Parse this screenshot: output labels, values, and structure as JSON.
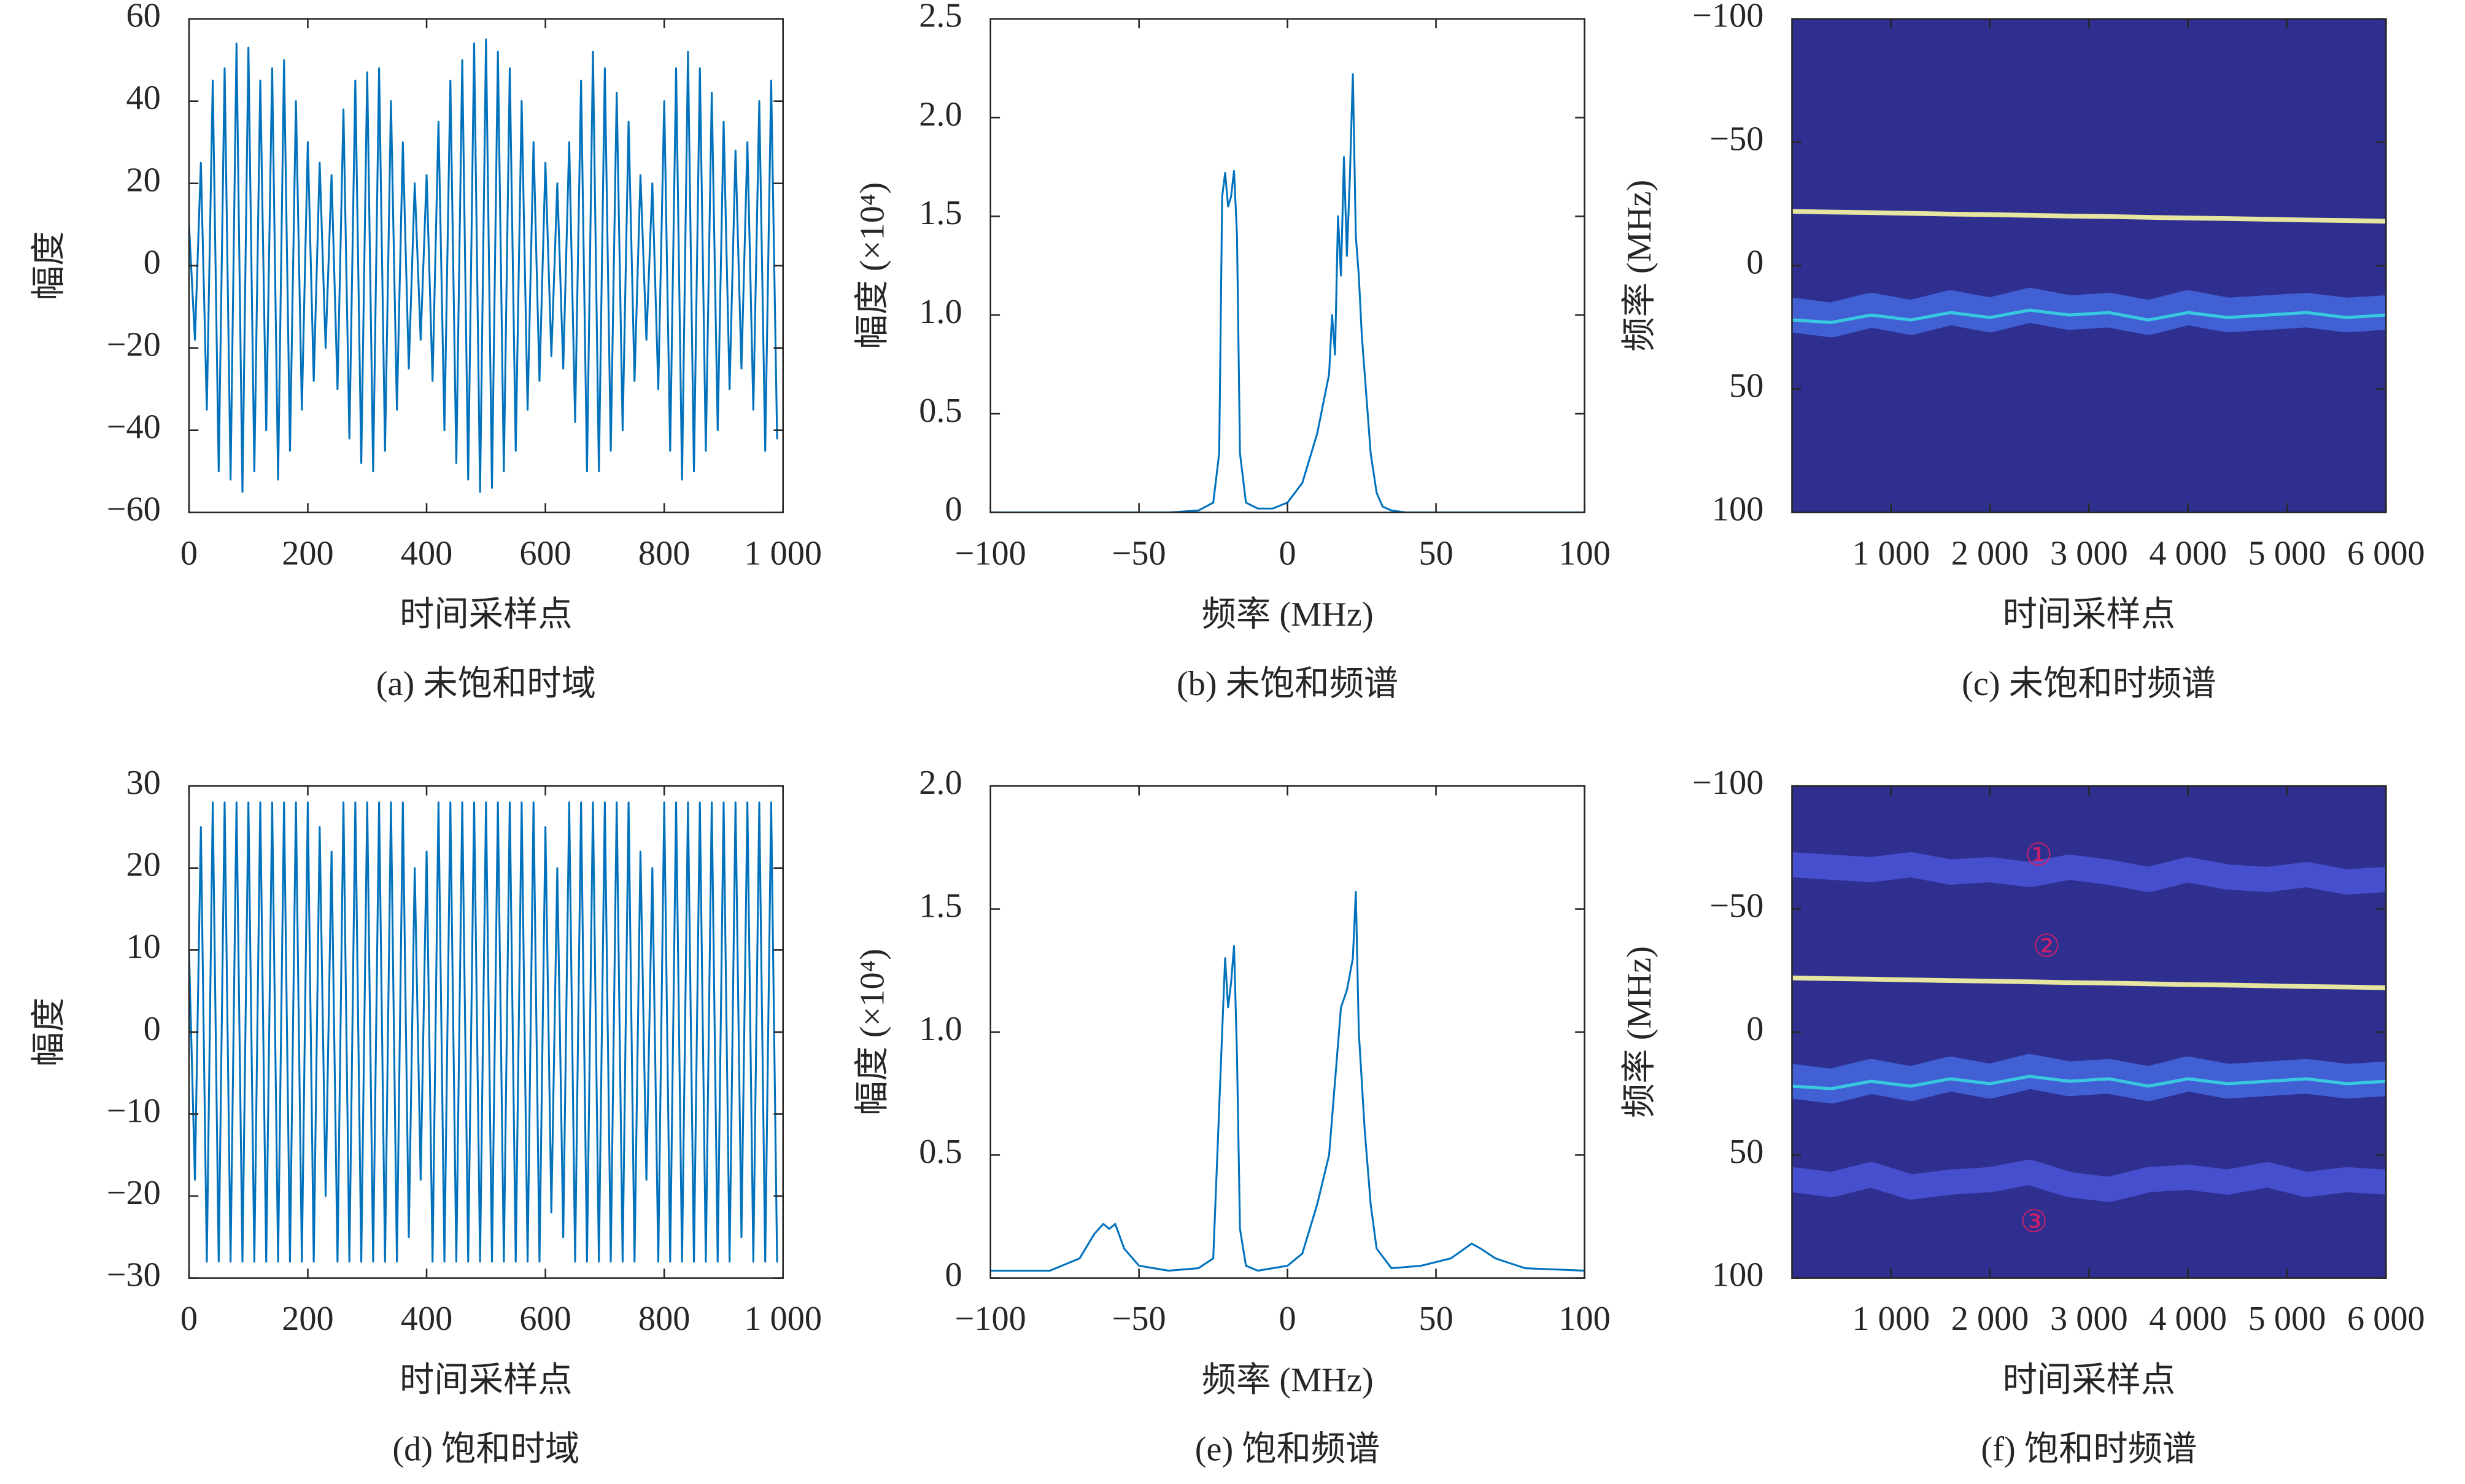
{
  "chart_data": [
    {
      "type": "line",
      "caption": "(a) 未饱和时域",
      "xlabel": "时间采样点",
      "ylabel": "幅度",
      "xlim": [
        0,
        1000
      ],
      "ylim": [
        -60,
        60
      ],
      "xticks": [
        0,
        200,
        400,
        600,
        800,
        {
          "value": 1000,
          "label": "1 000"
        }
      ],
      "yticks": [
        {
          "value": -60,
          "label": "−60"
        },
        {
          "value": -40,
          "label": "−40"
        },
        {
          "value": -20,
          "label": "−20"
        },
        0,
        20,
        40,
        60
      ],
      "x": [
        0,
        10,
        20,
        30,
        40,
        50,
        60,
        70,
        80,
        90,
        100,
        110,
        120,
        130,
        140,
        150,
        160,
        170,
        180,
        190,
        200,
        210,
        220,
        230,
        240,
        250,
        260,
        270,
        280,
        290,
        300,
        310,
        320,
        330,
        340,
        350,
        360,
        370,
        380,
        390,
        400,
        410,
        420,
        430,
        440,
        450,
        460,
        470,
        480,
        490,
        500,
        510,
        520,
        530,
        540,
        550,
        560,
        570,
        580,
        590,
        600,
        610,
        620,
        630,
        640,
        650,
        660,
        670,
        680,
        690,
        700,
        710,
        720,
        730,
        740,
        750,
        760,
        770,
        780,
        790,
        800,
        810,
        820,
        830,
        840,
        850,
        860,
        870,
        880,
        890,
        900,
        910,
        920,
        930,
        940,
        950,
        960,
        970,
        980,
        990
      ],
      "series": [
        {
          "color": "#0072bd",
          "values": [
            10,
            -18,
            25,
            -35,
            45,
            -50,
            48,
            -52,
            54,
            -55,
            53,
            -50,
            45,
            -40,
            48,
            -52,
            50,
            -45,
            40,
            -35,
            30,
            -28,
            25,
            -20,
            22,
            -30,
            38,
            -42,
            45,
            -48,
            47,
            -50,
            48,
            -45,
            40,
            -35,
            30,
            -25,
            20,
            -18,
            22,
            -28,
            35,
            -40,
            45,
            -48,
            50,
            -52,
            54,
            -55,
            55,
            -54,
            52,
            -50,
            48,
            -45,
            40,
            -35,
            30,
            -28,
            25,
            -22,
            20,
            -25,
            30,
            -38,
            45,
            -50,
            52,
            -50,
            48,
            -45,
            42,
            -40,
            35,
            -28,
            22,
            -18,
            20,
            -30,
            40,
            -45,
            48,
            -52,
            52,
            -50,
            48,
            -45,
            42,
            -40,
            35,
            -30,
            28,
            -25,
            30,
            -35,
            40,
            -45,
            45,
            -42
          ]
        }
      ]
    },
    {
      "type": "line",
      "caption": "(b) 未饱和频谱",
      "xlabel": "频率 (MHz)",
      "ylabel": "幅度 (×10⁴)",
      "xlim": [
        -100,
        100
      ],
      "ylim": [
        0,
        2.5
      ],
      "xticks": [
        {
          "value": -100,
          "label": "−100"
        },
        {
          "value": -50,
          "label": "−50"
        },
        0,
        50,
        100
      ],
      "yticks": [
        0,
        0.5,
        {
          "value": 1,
          "label": "1.0"
        },
        1.5,
        {
          "value": 2,
          "label": "2.0"
        },
        2.5
      ],
      "x": [
        -100,
        -60,
        -40,
        -30,
        -25,
        -23,
        -22,
        -21,
        -20,
        -19,
        -18,
        -17,
        -16,
        -14,
        -10,
        -5,
        0,
        5,
        8,
        10,
        12,
        14,
        15,
        16,
        17,
        18,
        19,
        20,
        21,
        22,
        23,
        24,
        25,
        26,
        27,
        28,
        30,
        32,
        35,
        40,
        50,
        100
      ],
      "series": [
        {
          "color": "#0072bd",
          "values": [
            0,
            0,
            0,
            0.01,
            0.05,
            0.3,
            1.6,
            1.72,
            1.55,
            1.6,
            1.73,
            1.4,
            0.3,
            0.05,
            0.02,
            0.02,
            0.05,
            0.15,
            0.3,
            0.4,
            0.55,
            0.7,
            1.0,
            0.8,
            1.5,
            1.2,
            1.8,
            1.3,
            1.7,
            2.22,
            1.4,
            1.2,
            0.9,
            0.7,
            0.5,
            0.3,
            0.1,
            0.03,
            0.01,
            0,
            0,
            0
          ]
        }
      ]
    },
    {
      "type": "spectrogram",
      "caption": "(c) 未饱和时频谱",
      "xlabel": "时间采样点",
      "ylabel": "频率 (MHz)",
      "background": "#2e2f8f",
      "yreverse": true,
      "xlim": [
        0,
        6000
      ],
      "ylim": [
        -100,
        100
      ],
      "xticks": [
        {
          "value": 1000,
          "label": "1 000"
        },
        {
          "value": 2000,
          "label": "2 000"
        },
        {
          "value": 3000,
          "label": "3 000"
        },
        {
          "value": 4000,
          "label": "4 000"
        },
        {
          "value": 5000,
          "label": "5 000"
        },
        {
          "value": 6000,
          "label": "6 000"
        }
      ],
      "yticks": [
        {
          "value": -100,
          "label": "−100"
        },
        {
          "value": -50,
          "label": "−50"
        },
        0,
        50,
        100
      ],
      "x": [
        0,
        400,
        800,
        1200,
        1600,
        2000,
        2400,
        2800,
        3200,
        3600,
        4000,
        4400,
        4800,
        5200,
        5600,
        6000
      ],
      "series": [
        {
          "color": "#4468e0",
          "values": [
            20,
            22,
            18,
            21,
            17,
            20,
            16,
            19,
            18,
            21,
            17,
            20,
            19,
            18,
            20,
            19
          ]
        },
        {
          "color": "#38c8e0",
          "values": [
            22,
            23,
            20,
            22,
            19,
            21,
            18,
            20,
            19,
            22,
            19,
            21,
            20,
            19,
            21,
            20
          ]
        },
        {
          "color": "#e6e6a0",
          "values": [
            -22,
            -21.7,
            -21.5,
            -21.2,
            -20.9,
            -20.7,
            -20.4,
            -20.1,
            -19.9,
            -19.6,
            -19.3,
            -19.1,
            -18.8,
            -18.5,
            -18.3,
            -18
          ]
        }
      ]
    },
    {
      "type": "line",
      "caption": "(d) 饱和时域",
      "xlabel": "时间采样点",
      "ylabel": "幅度",
      "xlim": [
        0,
        1000
      ],
      "ylim": [
        -30,
        30
      ],
      "xticks": [
        0,
        200,
        400,
        600,
        800,
        {
          "value": 1000,
          "label": "1 000"
        }
      ],
      "yticks": [
        {
          "value": -30,
          "label": "−30"
        },
        {
          "value": -20,
          "label": "−20"
        },
        {
          "value": -10,
          "label": "−10"
        },
        0,
        10,
        20,
        30
      ],
      "x": [
        0,
        10,
        20,
        30,
        40,
        50,
        60,
        70,
        80,
        90,
        100,
        110,
        120,
        130,
        140,
        150,
        160,
        170,
        180,
        190,
        200,
        210,
        220,
        230,
        240,
        250,
        260,
        270,
        280,
        290,
        300,
        310,
        320,
        330,
        340,
        350,
        360,
        370,
        380,
        390,
        400,
        410,
        420,
        430,
        440,
        450,
        460,
        470,
        480,
        490,
        500,
        510,
        520,
        530,
        540,
        550,
        560,
        570,
        580,
        590,
        600,
        610,
        620,
        630,
        640,
        650,
        660,
        670,
        680,
        690,
        700,
        710,
        720,
        730,
        740,
        750,
        760,
        770,
        780,
        790,
        800,
        810,
        820,
        830,
        840,
        850,
        860,
        870,
        880,
        890,
        900,
        910,
        920,
        930,
        940,
        950,
        960,
        970,
        980,
        990
      ],
      "series": [
        {
          "color": "#0072bd",
          "values": [
            10,
            -18,
            25,
            -28,
            28,
            -28,
            28,
            -28,
            28,
            -28,
            28,
            -28,
            28,
            -28,
            28,
            -28,
            28,
            -28,
            28,
            -28,
            28,
            -28,
            25,
            -20,
            22,
            -28,
            28,
            -28,
            28,
            -28,
            28,
            -28,
            28,
            -28,
            28,
            -28,
            28,
            -25,
            20,
            -18,
            22,
            -28,
            28,
            -28,
            28,
            -28,
            28,
            -28,
            28,
            -28,
            28,
            -28,
            28,
            -28,
            28,
            -28,
            28,
            -28,
            28,
            -28,
            25,
            -22,
            20,
            -25,
            28,
            -28,
            28,
            -28,
            28,
            -28,
            28,
            -28,
            28,
            -28,
            28,
            -28,
            22,
            -18,
            20,
            -28,
            28,
            -28,
            28,
            -28,
            28,
            -28,
            28,
            -28,
            28,
            -28,
            28,
            -28,
            28,
            -25,
            28,
            -28,
            28,
            -28,
            28,
            -28
          ]
        }
      ]
    },
    {
      "type": "line",
      "caption": "(e) 饱和频谱",
      "xlabel": "频率 (MHz)",
      "ylabel": "幅度 (×10⁴)",
      "xlim": [
        -100,
        100
      ],
      "ylim": [
        0,
        2
      ],
      "xticks": [
        {
          "value": -100,
          "label": "−100"
        },
        {
          "value": -50,
          "label": "−50"
        },
        0,
        50,
        100
      ],
      "yticks": [
        0,
        0.5,
        {
          "value": 1,
          "label": "1.0"
        },
        1.5,
        {
          "value": 2,
          "label": "2.0"
        }
      ],
      "x": [
        -100,
        -80,
        -70,
        -65,
        -62,
        -60,
        -58,
        -55,
        -50,
        -40,
        -30,
        -25,
        -22,
        -21,
        -20,
        -19,
        -18,
        -17,
        -16,
        -14,
        -10,
        -5,
        0,
        5,
        10,
        14,
        16,
        18,
        20,
        22,
        23,
        24,
        26,
        28,
        30,
        35,
        45,
        55,
        62,
        65,
        70,
        80,
        100
      ],
      "series": [
        {
          "color": "#0072bd",
          "values": [
            0.03,
            0.03,
            0.08,
            0.18,
            0.22,
            0.2,
            0.22,
            0.12,
            0.05,
            0.03,
            0.04,
            0.08,
            1.0,
            1.3,
            1.1,
            1.2,
            1.35,
            0.9,
            0.2,
            0.05,
            0.03,
            0.04,
            0.05,
            0.1,
            0.3,
            0.5,
            0.8,
            1.1,
            1.17,
            1.3,
            1.57,
            1.0,
            0.6,
            0.3,
            0.12,
            0.04,
            0.05,
            0.08,
            0.14,
            0.12,
            0.08,
            0.04,
            0.03
          ]
        }
      ]
    },
    {
      "type": "spectrogram",
      "caption": "(f) 饱和时频谱",
      "xlabel": "时间采样点",
      "ylabel": "频率 (MHz)",
      "background": "#2e2f8f",
      "yreverse": true,
      "xlim": [
        0,
        6000
      ],
      "ylim": [
        -100,
        100
      ],
      "xticks": [
        {
          "value": 1000,
          "label": "1 000"
        },
        {
          "value": 2000,
          "label": "2 000"
        },
        {
          "value": 3000,
          "label": "3 000"
        },
        {
          "value": 4000,
          "label": "4 000"
        },
        {
          "value": 5000,
          "label": "5 000"
        },
        {
          "value": 6000,
          "label": "6 000"
        }
      ],
      "yticks": [
        {
          "value": -100,
          "label": "−100"
        },
        {
          "value": -50,
          "label": "−50"
        },
        0,
        50,
        100
      ],
      "x": [
        0,
        400,
        800,
        1200,
        1600,
        2000,
        2400,
        2800,
        3200,
        3600,
        4000,
        4400,
        4800,
        5200,
        5600,
        6000
      ],
      "series": [
        {
          "color": "#4a55d8",
          "values": [
            -68,
            -67,
            -66,
            -68,
            -65,
            -66,
            -64,
            -67,
            -65,
            -62,
            -66,
            -63,
            -62,
            -64,
            -61,
            -62
          ]
        },
        {
          "color": "#4a55d8",
          "values": [
            60,
            62,
            58,
            63,
            61,
            60,
            57,
            62,
            64,
            60,
            59,
            61,
            58,
            62,
            60,
            61
          ]
        },
        {
          "color": "#4468e0",
          "values": [
            20,
            22,
            18,
            21,
            17,
            20,
            16,
            19,
            18,
            21,
            17,
            20,
            19,
            18,
            20,
            19
          ]
        },
        {
          "color": "#38c8e0",
          "values": [
            22,
            23,
            20,
            22,
            19,
            21,
            18,
            20,
            19,
            22,
            19,
            21,
            20,
            19,
            21,
            20
          ]
        },
        {
          "color": "#e6e6a0",
          "values": [
            -22,
            -21.7,
            -21.5,
            -21.2,
            -20.9,
            -20.7,
            -20.4,
            -20.1,
            -19.9,
            -19.6,
            -19.3,
            -19.1,
            -18.8,
            -18.5,
            -18.3,
            -18
          ]
        }
      ],
      "annotations": [
        "①",
        "②",
        "③"
      ],
      "annotation_color": "#c8206a"
    }
  ]
}
